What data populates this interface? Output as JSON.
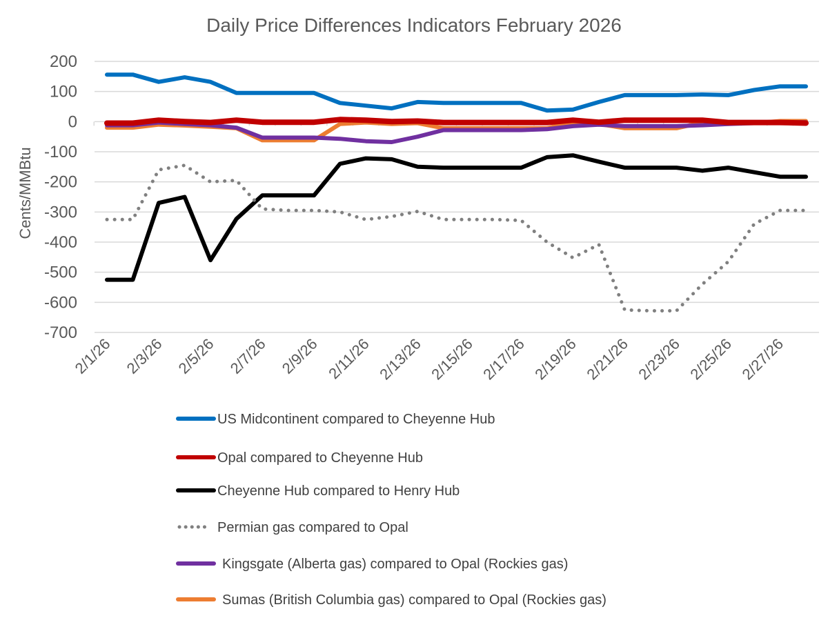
{
  "chart_data": {
    "type": "line",
    "title": "Daily Price Differences Indicators February 2026",
    "xlabel": "",
    "ylabel": "Cents/MMBtu",
    "ylim": [
      -700,
      200
    ],
    "yticks": [
      200,
      100,
      0,
      -100,
      -200,
      -300,
      -400,
      -500,
      -600,
      -700
    ],
    "ytick_labels": [
      "200",
      "100",
      "0",
      "-100",
      "-200",
      "-300",
      "-400",
      "-500",
      "-600",
      "-700"
    ],
    "grid": true,
    "legend_position": "bottom",
    "x": [
      "2/1/26",
      "2/2/26",
      "2/3/26",
      "2/4/26",
      "2/5/26",
      "2/6/26",
      "2/7/26",
      "2/8/26",
      "2/9/26",
      "2/10/26",
      "2/11/26",
      "2/12/26",
      "2/13/26",
      "2/14/26",
      "2/15/26",
      "2/16/26",
      "2/17/26",
      "2/18/26",
      "2/19/26",
      "2/20/26",
      "2/21/26",
      "2/22/26",
      "2/23/26",
      "2/24/26",
      "2/25/26",
      "2/26/26",
      "2/27/26",
      "2/28/26"
    ],
    "xtick_labels": [
      "2/1/26",
      "2/3/26",
      "2/5/26",
      "2/7/26",
      "2/9/26",
      "2/11/26",
      "2/13/26",
      "2/15/26",
      "2/17/26",
      "2/19/26",
      "2/21/26",
      "2/23/26",
      "2/25/26",
      "2/27/26"
    ],
    "series": [
      {
        "name": "US Midcontinent compared to Cheyenne Hub",
        "color": "#0070C0",
        "style": "solid",
        "values": [
          156,
          156,
          132,
          147,
          132,
          95,
          95,
          95,
          95,
          62,
          53,
          44,
          65,
          62,
          62,
          62,
          62,
          37,
          40,
          65,
          88,
          88,
          88,
          90,
          88,
          105,
          117,
          117
        ]
      },
      {
        "name": "Opal compared to Cheyenne Hub",
        "color": "#C00000",
        "style": "solid",
        "values": [
          -5,
          -5,
          5,
          0,
          -3,
          5,
          -2,
          -2,
          -2,
          7,
          5,
          0,
          2,
          -3,
          -3,
          -3,
          -3,
          -3,
          5,
          -2,
          5,
          5,
          5,
          5,
          -3,
          -3,
          -3,
          -5
        ]
      },
      {
        "name": "Cheyenne Hub compared to Henry Hub",
        "color": "#000000",
        "style": "solid",
        "values": [
          -525,
          -525,
          -270,
          -250,
          -460,
          -323,
          -245,
          -245,
          -245,
          -140,
          -122,
          -125,
          -150,
          -153,
          -153,
          -153,
          -153,
          -118,
          -112,
          -133,
          -153,
          -153,
          -153,
          -163,
          -153,
          -168,
          -183,
          -183
        ]
      },
      {
        "name": "Permian gas compared to Opal",
        "color": "#808080",
        "style": "dotted",
        "values": [
          -325,
          -325,
          -160,
          -145,
          -200,
          -195,
          -290,
          -295,
          -295,
          -300,
          -325,
          -315,
          -298,
          -325,
          -325,
          -325,
          -328,
          -400,
          -452,
          -408,
          -625,
          -628,
          -628,
          -540,
          -465,
          -340,
          -295,
          -295
        ]
      },
      {
        "name": "Kingsgate (Alberta gas) compared to Opal (Rockies gas)",
        "color": "#7030A0",
        "style": "solid",
        "values": [
          -12,
          -12,
          -3,
          -8,
          -12,
          -20,
          -53,
          -53,
          -53,
          -57,
          -65,
          -68,
          -50,
          -28,
          -28,
          -28,
          -28,
          -25,
          -15,
          -10,
          -15,
          -15,
          -15,
          -12,
          -8,
          -5,
          -2,
          -2
        ]
      },
      {
        "name": "Sumas (British Columbia gas) compared to Opal (Rockies gas)",
        "color": "#ED7D31",
        "style": "solid",
        "values": [
          -20,
          -20,
          -10,
          -13,
          -17,
          -22,
          -62,
          -62,
          -62,
          -8,
          -3,
          -8,
          -5,
          -22,
          -22,
          -22,
          -22,
          -22,
          -2,
          -8,
          -22,
          -22,
          -22,
          -3,
          -3,
          -5,
          2,
          2
        ]
      }
    ]
  }
}
